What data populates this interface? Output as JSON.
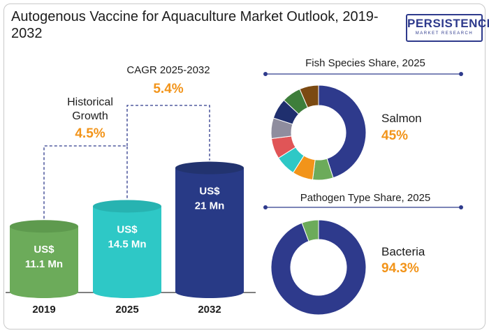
{
  "title": "Autogenous Vaccine for Aquaculture Market Outlook, 2019-2032",
  "logo": {
    "main": "PERSISTENCE",
    "sub": "MARKET RESEARCH"
  },
  "colors": {
    "bar_2019": "#6cab5a",
    "bar_2025": "#2ec8c6",
    "bar_2032": "#283a86",
    "accent": "#f2941a",
    "navy": "#2e3a8c",
    "donut_main": "#2e3a8c"
  },
  "chart_data": [
    {
      "type": "bar",
      "title": "",
      "categories": [
        "2019",
        "2025",
        "2032"
      ],
      "values": [
        11.1,
        14.5,
        21
      ],
      "value_labels": [
        [
          "US$",
          "11.1 Mn"
        ],
        [
          "US$",
          "14.5 Mn"
        ],
        [
          "US$",
          "21 Mn"
        ]
      ],
      "annotations": [
        {
          "label_lines": [
            "Historical",
            "Growth"
          ],
          "value": "4.5%",
          "between": [
            "2019",
            "2025"
          ]
        },
        {
          "label_lines": [
            "CAGR 2025-2032"
          ],
          "value": "5.4%",
          "between": [
            "2025",
            "2032"
          ]
        }
      ]
    },
    {
      "type": "pie",
      "title": "Fish Species Share, 2025",
      "highlight_label": "Salmon",
      "highlight_value": "45%",
      "slices": [
        {
          "value": 45,
          "color": "#2e3a8c"
        },
        {
          "value": 7,
          "color": "#6cab5a"
        },
        {
          "value": 7,
          "color": "#f2941a"
        },
        {
          "value": 7,
          "color": "#2ec8c6"
        },
        {
          "value": 7,
          "color": "#e05557"
        },
        {
          "value": 7,
          "color": "#8f8d9e"
        },
        {
          "value": 7,
          "color": "#1f2f6e"
        },
        {
          "value": 6.5,
          "color": "#3e7e3b"
        },
        {
          "value": 6.5,
          "color": "#7b4a12"
        }
      ]
    },
    {
      "type": "pie",
      "title": "Pathogen Type Share, 2025",
      "highlight_label": "Bacteria",
      "highlight_value": "94.3%",
      "slices": [
        {
          "value": 94.3,
          "color": "#2e3a8c"
        },
        {
          "value": 5.7,
          "color": "#6cab5a"
        }
      ]
    }
  ]
}
